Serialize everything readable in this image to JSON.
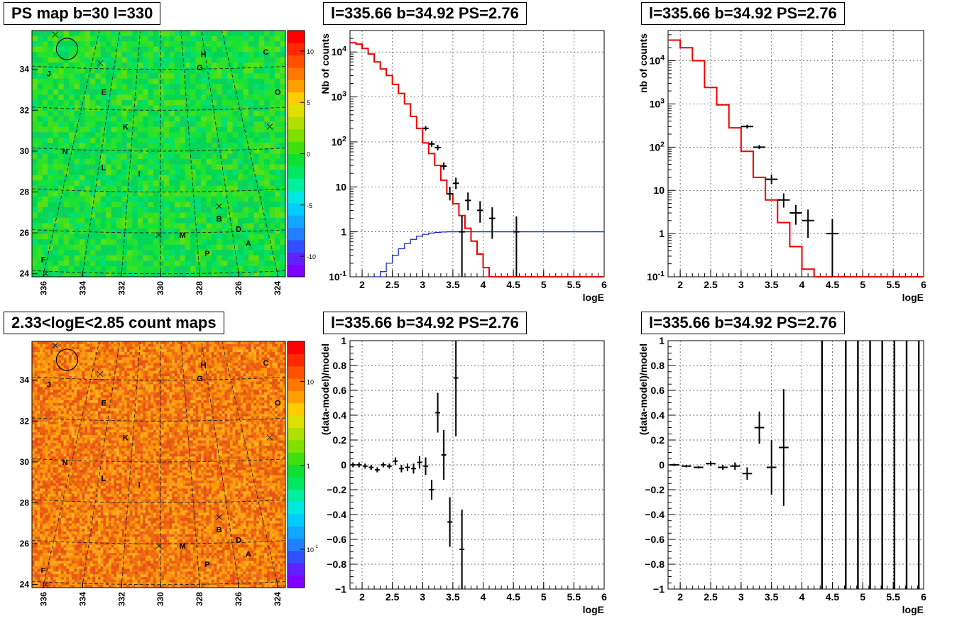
{
  "skymap_axis": {
    "x_ticks": [
      "336",
      "334",
      "332",
      "330",
      "328",
      "326",
      "324"
    ],
    "y_ticks": [
      "24",
      "26",
      "28",
      "30",
      "32",
      "34"
    ],
    "labels": [
      {
        "t": "H",
        "l": 327.8,
        "b": 34.75
      },
      {
        "t": "C",
        "l": 324.6,
        "b": 34.85
      },
      {
        "t": "G",
        "l": 328.0,
        "b": 34.1
      },
      {
        "t": "J",
        "l": 335.7,
        "b": 33.8
      },
      {
        "t": "O",
        "l": 324.0,
        "b": 32.9
      },
      {
        "t": "E",
        "l": 332.9,
        "b": 32.9
      },
      {
        "t": "K",
        "l": 331.8,
        "b": 31.2
      },
      {
        "t": "N",
        "l": 334.9,
        "b": 30.0
      },
      {
        "t": "L",
        "l": 332.9,
        "b": 29.2
      },
      {
        "t": "I",
        "l": 331.0,
        "b": 28.9
      },
      {
        "t": "B",
        "l": 327.0,
        "b": 26.7
      },
      {
        "t": "D",
        "l": 326.0,
        "b": 26.2
      },
      {
        "t": "M",
        "l": 328.9,
        "b": 25.9
      },
      {
        "t": "A",
        "l": 325.5,
        "b": 25.5
      },
      {
        "t": "P",
        "l": 327.6,
        "b": 25.0
      },
      {
        "t": "F",
        "l": 336.0,
        "b": 24.7
      }
    ],
    "crosses": [
      {
        "l": 335.4,
        "b": 35.7
      },
      {
        "l": 333.1,
        "b": 34.3
      },
      {
        "l": 324.4,
        "b": 31.2
      },
      {
        "l": 327.0,
        "b": 27.3
      },
      {
        "l": 330.1,
        "b": 25.9
      },
      {
        "l": 335.9,
        "b": 24.0
      }
    ],
    "circle": {
      "l": 334.8,
      "b": 35.0
    }
  },
  "panels": {
    "ps_map": {
      "title": "PS map b=30 l=330",
      "colorbar": {
        "labels": [
          "10",
          "5",
          "0",
          "-5",
          "-10"
        ],
        "values": [
          10,
          5,
          0,
          -5,
          -10
        ],
        "range": [
          -12,
          12
        ]
      },
      "base_color": "#10e040"
    },
    "count_map": {
      "title": "2.33<logE<2.85 count maps",
      "colorbar": {
        "labels": [
          "10",
          "1",
          "10^-1"
        ],
        "values": [
          10,
          1,
          0.1
        ],
        "log": true,
        "range": [
          0.035,
          30
        ]
      },
      "base_color": "#f07a10"
    },
    "spec_full": {
      "title": "l=335.66 b=34.92 PS=2.76"
    },
    "spec_coarse": {
      "title": "l=335.66 b=34.92 PS=2.76"
    },
    "resid_full": {
      "title": "l=335.66 b=34.92 PS=2.76"
    },
    "resid_coarse": {
      "title": "l=335.66 b=34.92 PS=2.76"
    }
  },
  "chart_data": [
    {
      "type": "line",
      "name": "spec_full",
      "title": "l=335.66 b=34.92 PS=2.76",
      "xlabel": "logE",
      "ylabel": "Nb of counts",
      "xlim": [
        1.8,
        6.0
      ],
      "ylim": [
        0.1,
        30000
      ],
      "ylog": true,
      "x_ticks": [
        "2",
        "2.5",
        "3",
        "3.5",
        "4",
        "4.5",
        "5",
        "5.5",
        "6"
      ],
      "y_ticks": [
        "10^-1",
        "1",
        "10",
        "10^2",
        "10^3",
        "10^4"
      ],
      "model": {
        "bin_edges": [
          1.8,
          1.9,
          2.0,
          2.1,
          2.2,
          2.3,
          2.4,
          2.5,
          2.6,
          2.7,
          2.8,
          2.9,
          3.0,
          3.1,
          3.2,
          3.3,
          3.4,
          3.5,
          3.6,
          3.7,
          3.8,
          3.9,
          4.0,
          4.1,
          4.2
        ],
        "values": [
          16000,
          15000,
          12000,
          9000,
          6000,
          4200,
          3000,
          1900,
          1200,
          700,
          370,
          200,
          95,
          55,
          30,
          14,
          7,
          4.2,
          2.3,
          1.2,
          0.62,
          0.32,
          0.16,
          0.1
        ]
      },
      "exposure": {
        "bin_edges": [
          2.2,
          2.3,
          2.4,
          2.5,
          2.6,
          2.7,
          2.8,
          2.9,
          3.0,
          3.1,
          3.2,
          3.3,
          3.4,
          3.5,
          3.6,
          3.7,
          6.0
        ],
        "values": [
          0.1,
          0.13,
          0.2,
          0.3,
          0.42,
          0.55,
          0.68,
          0.8,
          0.88,
          0.94,
          0.97,
          0.99,
          1.0,
          1.0,
          1.0,
          1.0
        ]
      },
      "data": [
        {
          "x": 3.05,
          "y": 200,
          "lo": 180,
          "hi": 225,
          "xerr": 0.05
        },
        {
          "x": 3.15,
          "y": 90,
          "lo": 78,
          "hi": 103,
          "xerr": 0.05
        },
        {
          "x": 3.25,
          "y": 75,
          "lo": 65,
          "hi": 86,
          "xerr": 0.05
        },
        {
          "x": 3.35,
          "y": 29,
          "lo": 24,
          "hi": 35,
          "xerr": 0.05
        },
        {
          "x": 3.45,
          "y": 7,
          "lo": 5,
          "hi": 10,
          "xerr": 0.05
        },
        {
          "x": 3.55,
          "y": 12,
          "lo": 9,
          "hi": 16,
          "xerr": 0.05
        },
        {
          "x": 3.65,
          "y": 1,
          "lo": 0.1,
          "hi": 2.3,
          "xerr": 0.05
        },
        {
          "x": 3.75,
          "y": 5,
          "lo": 3,
          "hi": 7.5,
          "xerr": 0.05
        },
        {
          "x": 3.95,
          "y": 3,
          "lo": 1.6,
          "hi": 4.8,
          "xerr": 0.05
        },
        {
          "x": 4.15,
          "y": 2,
          "lo": 0.7,
          "hi": 3.5,
          "xerr": 0.05
        },
        {
          "x": 4.55,
          "y": 1,
          "lo": 0.1,
          "hi": 2.2,
          "xerr": 0.05
        }
      ]
    },
    {
      "type": "line",
      "name": "spec_coarse",
      "title": "l=335.66 b=34.92 PS=2.76",
      "xlabel": "logE",
      "ylabel": "nb of counts",
      "xlim": [
        1.8,
        6.0
      ],
      "ylim": [
        0.1,
        50000
      ],
      "ylog": true,
      "x_ticks": [
        "2",
        "2.5",
        "3",
        "3.5",
        "4",
        "4.5",
        "5",
        "5.5",
        "6"
      ],
      "y_ticks": [
        "10^-1",
        "1",
        "10",
        "10^2",
        "10^3",
        "10^4"
      ],
      "model": {
        "bin_edges": [
          1.8,
          2.0,
          2.2,
          2.4,
          2.6,
          2.8,
          3.0,
          3.2,
          3.4,
          3.6,
          3.8,
          4.0,
          4.2,
          4.4,
          6.0
        ],
        "values": [
          30000,
          20000,
          10000,
          2400,
          950,
          280,
          80,
          20,
          6,
          1.8,
          0.5,
          0.15,
          0.1,
          0.1
        ]
      },
      "data": [
        {
          "x": 3.1,
          "y": 300,
          "lo": 270,
          "hi": 330,
          "xerr": 0.1
        },
        {
          "x": 3.3,
          "y": 100,
          "lo": 90,
          "hi": 112,
          "xerr": 0.1
        },
        {
          "x": 3.5,
          "y": 18,
          "lo": 14,
          "hi": 23,
          "xerr": 0.1
        },
        {
          "x": 3.7,
          "y": 6,
          "lo": 4,
          "hi": 8.5,
          "xerr": 0.1
        },
        {
          "x": 3.9,
          "y": 3,
          "lo": 1.6,
          "hi": 4.6,
          "xerr": 0.1
        },
        {
          "x": 4.1,
          "y": 2,
          "lo": 0.8,
          "hi": 3.6,
          "xerr": 0.1
        },
        {
          "x": 4.5,
          "y": 1,
          "lo": 0.1,
          "hi": 2.2,
          "xerr": 0.1
        }
      ]
    },
    {
      "type": "scatter",
      "name": "resid_full",
      "title": "l=335.66 b=34.92 PS=2.76",
      "xlabel": "logE",
      "ylabel": "(data-model)/model",
      "xlim": [
        1.8,
        6.0
      ],
      "ylim": [
        -1,
        1
      ],
      "x_ticks": [
        "2",
        "2.5",
        "3",
        "3.5",
        "4",
        "4.5",
        "5",
        "5.5",
        "6"
      ],
      "y_ticks": [
        "−1",
        "−0.8",
        "−0.6",
        "−0.4",
        "−0.2",
        "0",
        "0.2",
        "0.4",
        "0.6",
        "0.8",
        "1"
      ],
      "data": [
        {
          "x": 1.85,
          "y": 0.0,
          "err": 0.02,
          "xerr": 0.04
        },
        {
          "x": 1.95,
          "y": 0.0,
          "err": 0.02,
          "xerr": 0.04
        },
        {
          "x": 2.05,
          "y": -0.01,
          "err": 0.02,
          "xerr": 0.04
        },
        {
          "x": 2.15,
          "y": -0.02,
          "err": 0.02,
          "xerr": 0.04
        },
        {
          "x": 2.25,
          "y": -0.04,
          "err": 0.02,
          "xerr": 0.04
        },
        {
          "x": 2.35,
          "y": 0.0,
          "err": 0.02,
          "xerr": 0.04
        },
        {
          "x": 2.45,
          "y": -0.01,
          "err": 0.02,
          "xerr": 0.04
        },
        {
          "x": 2.55,
          "y": 0.03,
          "err": 0.03,
          "xerr": 0.04
        },
        {
          "x": 2.65,
          "y": -0.03,
          "err": 0.03,
          "xerr": 0.04
        },
        {
          "x": 2.75,
          "y": -0.02,
          "err": 0.03,
          "xerr": 0.04
        },
        {
          "x": 2.85,
          "y": -0.03,
          "err": 0.04,
          "xerr": 0.04
        },
        {
          "x": 2.95,
          "y": 0.02,
          "err": 0.05,
          "xerr": 0.04
        },
        {
          "x": 3.05,
          "y": -0.01,
          "err": 0.07,
          "xerr": 0.04
        },
        {
          "x": 3.15,
          "y": -0.2,
          "err": 0.08,
          "xerr": 0.04
        },
        {
          "x": 3.25,
          "y": 0.42,
          "err": 0.16,
          "xerr": 0.04
        },
        {
          "x": 3.35,
          "y": 0.08,
          "err": 0.2,
          "xerr": 0.04
        },
        {
          "x": 3.45,
          "y": -0.46,
          "err": 0.2,
          "xerr": 0.04
        },
        {
          "x": 3.55,
          "y": 0.7,
          "err": 0.47,
          "xerr": 0.04
        },
        {
          "x": 3.65,
          "y": -0.68,
          "err": 0.32,
          "xerr": 0.04
        }
      ]
    },
    {
      "type": "scatter",
      "name": "resid_coarse",
      "title": "l=335.66 b=34.92 PS=2.76",
      "xlabel": "logE",
      "ylabel": "(data-model)/model",
      "xlim": [
        1.8,
        6.0
      ],
      "ylim": [
        -1,
        1
      ],
      "x_ticks": [
        "2",
        "2.5",
        "3",
        "3.5",
        "4",
        "4.5",
        "5",
        "5.5",
        "6"
      ],
      "y_ticks": [
        "−1",
        "−0.8",
        "−0.6",
        "−0.4",
        "−0.2",
        "0",
        "0.2",
        "0.4",
        "0.6",
        "0.8",
        "1"
      ],
      "data": [
        {
          "x": 1.9,
          "y": 0.0,
          "err": 0.01,
          "xerr": 0.08
        },
        {
          "x": 2.1,
          "y": -0.01,
          "err": 0.01,
          "xerr": 0.08
        },
        {
          "x": 2.3,
          "y": -0.02,
          "err": 0.01,
          "xerr": 0.08
        },
        {
          "x": 2.5,
          "y": 0.01,
          "err": 0.02,
          "xerr": 0.08
        },
        {
          "x": 2.7,
          "y": -0.02,
          "err": 0.02,
          "xerr": 0.08
        },
        {
          "x": 2.9,
          "y": -0.01,
          "err": 0.03,
          "xerr": 0.08
        },
        {
          "x": 3.1,
          "y": -0.07,
          "err": 0.05,
          "xerr": 0.08
        },
        {
          "x": 3.3,
          "y": 0.3,
          "err": 0.13,
          "xerr": 0.08
        },
        {
          "x": 3.5,
          "y": -0.02,
          "err": 0.22,
          "xerr": 0.08
        },
        {
          "x": 3.7,
          "y": 0.14,
          "err": 0.47,
          "xerr": 0.08
        }
      ],
      "vlines_at": [
        4.33,
        4.72,
        4.92,
        5.12,
        5.32,
        5.52,
        5.72,
        5.92
      ]
    }
  ]
}
